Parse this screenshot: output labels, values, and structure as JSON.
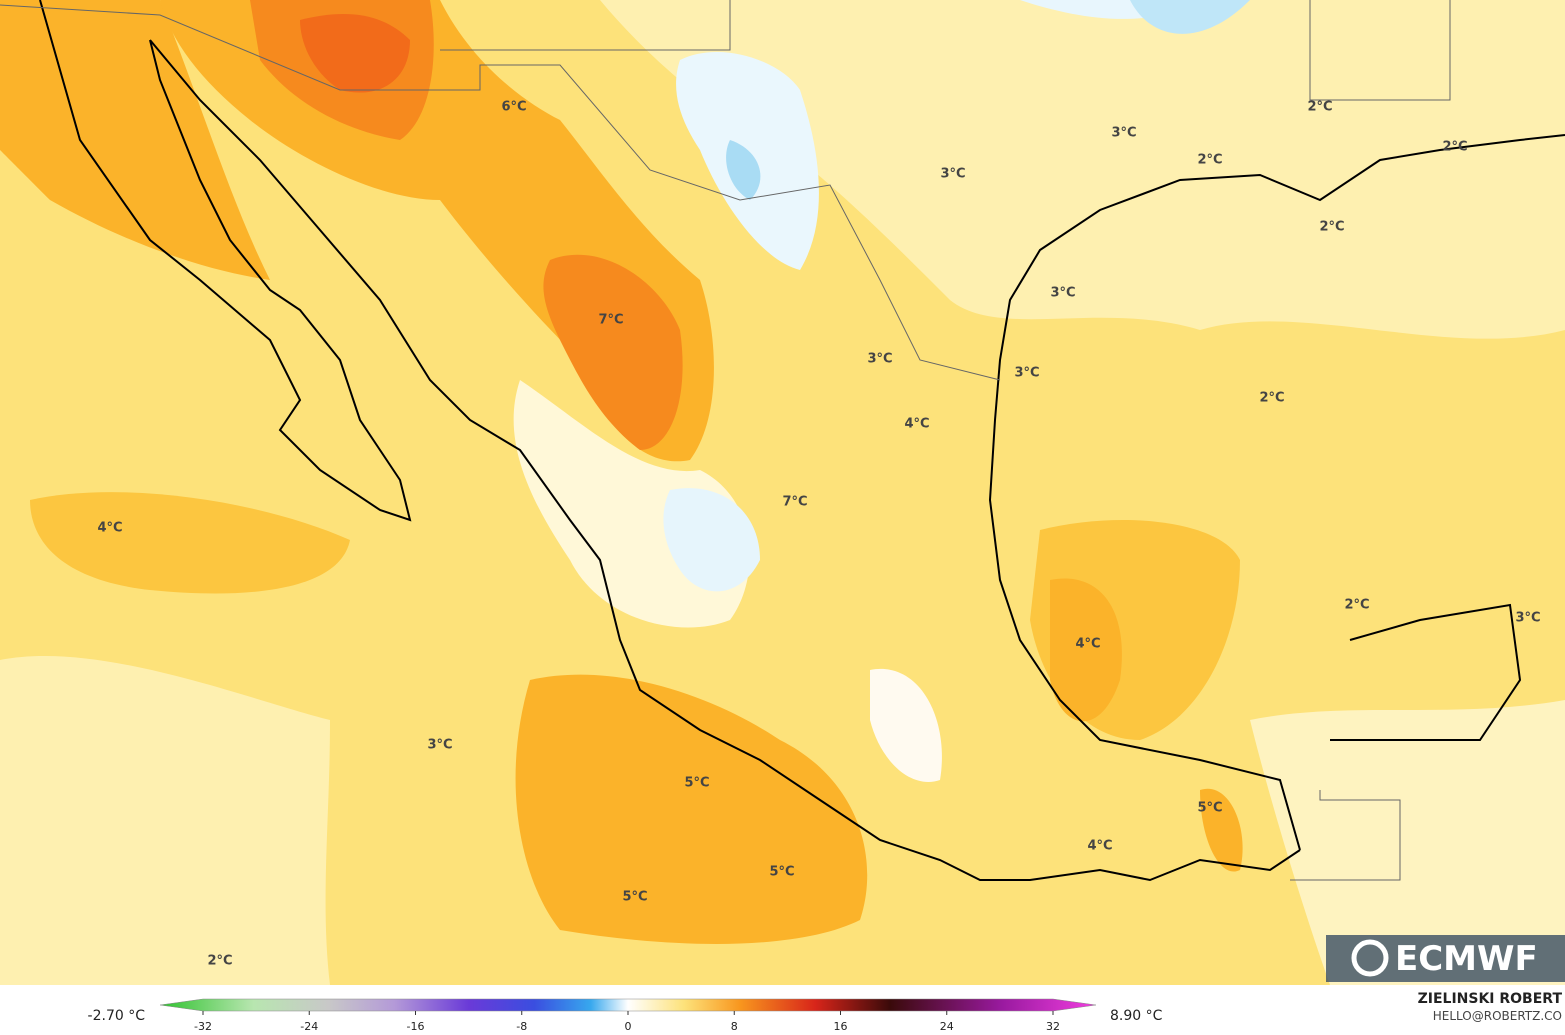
{
  "map": {
    "labels": [
      "6°C",
      "3°C",
      "2°C",
      "2°C",
      "2°C",
      "3°C",
      "2°C",
      "3°C",
      "7°C",
      "3°C",
      "3°C",
      "2°C",
      "4°C",
      "4°C",
      "7°C",
      "2°C",
      "3°C",
      "4°C",
      "3°C",
      "5°C",
      "5°C",
      "4°C",
      "5°C",
      "5°C",
      "2°C"
    ]
  },
  "colorbar": {
    "range": [
      -32,
      32
    ],
    "ticks": [
      -32,
      -24,
      -16,
      -8,
      0,
      8,
      16,
      24,
      32
    ],
    "min_label": "-2.70 °C",
    "max_label": "8.90 °C"
  },
  "credits": {
    "author": "ZIELINSKI ROBERT",
    "contact": "HELLO@ROBERTZ.CO",
    "logo": "ECMWF"
  }
}
